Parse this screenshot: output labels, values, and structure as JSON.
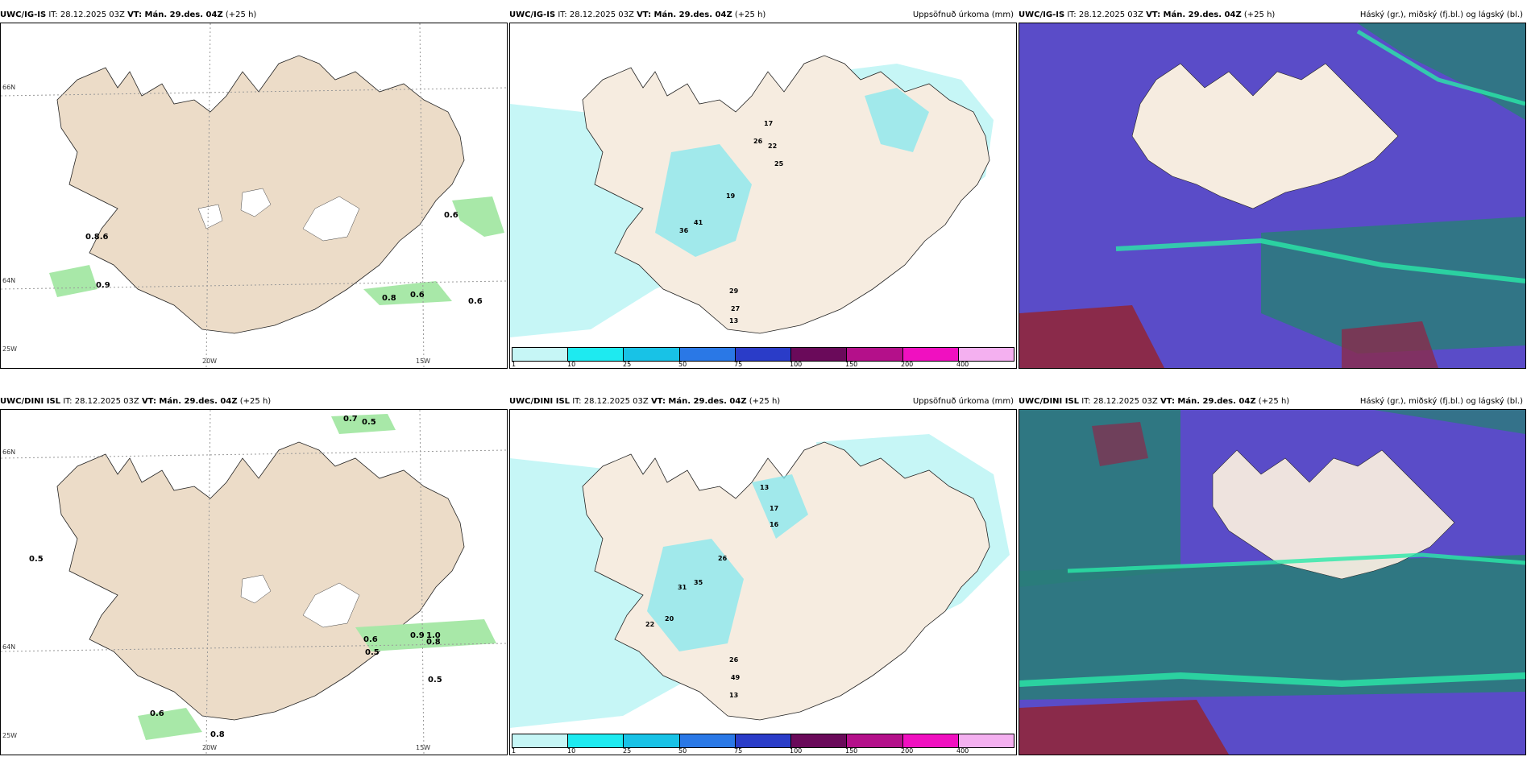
{
  "rows": [
    {
      "model": "UWC/IG-IS",
      "it_label": "IT: 28.12.2025 03Z",
      "vt_label": "VT: Mán. 29.des. 04Z",
      "lead": "(+25 h)"
    },
    {
      "model": "UWC/DINI ISL",
      "it_label": "IT: 28.12.2025 03Z",
      "vt_label": "VT: Mán. 29.des. 04Z",
      "lead": "(+25 h)"
    }
  ],
  "precip_title": "Uppsöfnuð úrkoma (mm)",
  "cloud_title": "Háský (gr.), miðský (fj.bl.) og lágský (bl.)",
  "colorbar": {
    "ticks": [
      "1",
      "10",
      "25",
      "50",
      "75",
      "100",
      "150",
      "200",
      "400"
    ],
    "colors": [
      "#c6f6f6",
      "#1eeaf0",
      "#18c2e6",
      "#2a78e6",
      "#2a3cc8",
      "#6a0a5a",
      "#b4108a",
      "#f010c0",
      "#f4b0f0"
    ]
  },
  "axes": {
    "lon_labels": [
      "20W",
      "15W"
    ],
    "lat_labels": [
      "66N",
      "64N",
      "25W"
    ]
  },
  "wind_values_top": [
    "0.8.6",
    "0.9",
    "0.8",
    "0.6",
    "0.6",
    "0.6"
  ],
  "wind_values_bottom": [
    "0.7",
    "0.5",
    "0.5",
    "0.6",
    "0.9",
    "1.0",
    "0.8",
    "0.5",
    "0.6",
    "0.8",
    "0.5"
  ],
  "precip_values_top": [
    "17",
    "26",
    "22",
    "25",
    "19",
    "36",
    "41",
    "29",
    "27",
    "13"
  ],
  "precip_values_bottom": [
    "13",
    "17",
    "16",
    "31",
    "35",
    "26",
    "20",
    "22",
    "26",
    "49",
    "13"
  ],
  "colors": {
    "land": "#ecdcc8",
    "precip_light": "#c6f6f6",
    "cloud_mid": "#5a4cc8",
    "cloud_high": "#2a7c7a",
    "cloud_low": "#8a2a4a"
  }
}
